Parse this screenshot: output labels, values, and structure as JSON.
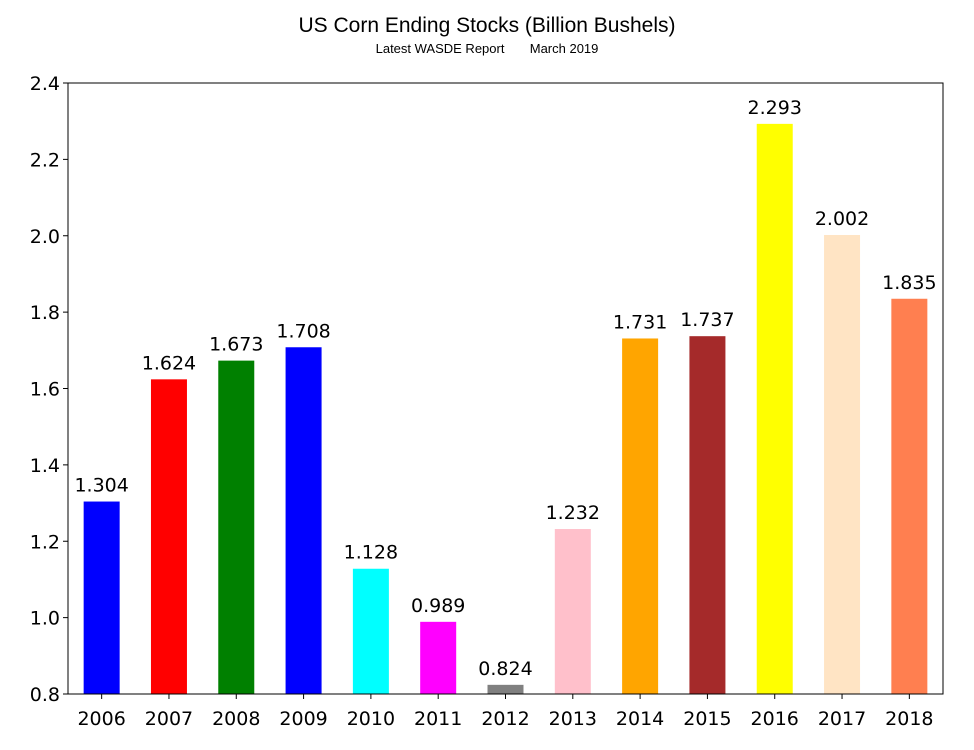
{
  "chart_data": {
    "type": "bar",
    "title": "US Corn Ending Stocks (Billion Bushels)",
    "subtitle": "Latest WASDE Report       March 2019",
    "xlabel": "",
    "ylabel": "",
    "categories": [
      "2006",
      "2007",
      "2008",
      "2009",
      "2010",
      "2011",
      "2012",
      "2013",
      "2014",
      "2015",
      "2016",
      "2017",
      "2018"
    ],
    "values": [
      1.304,
      1.624,
      1.673,
      1.708,
      1.128,
      0.989,
      0.824,
      1.232,
      1.731,
      1.737,
      2.293,
      2.002,
      1.835
    ],
    "value_labels": [
      "1.304",
      "1.624",
      "1.673",
      "1.708",
      "1.128",
      "0.989",
      "0.824",
      "1.232",
      "1.731",
      "1.737",
      "2.293",
      "2.002",
      "1.835"
    ],
    "colors": [
      "#0000ff",
      "#ff0000",
      "#008000",
      "#0000ff",
      "#00ffff",
      "#ff00ff",
      "#808080",
      "#ffc0cb",
      "#ffa500",
      "#a52a2a",
      "#ffff00",
      "#ffe4c4",
      "#ff7f50"
    ],
    "ylim": [
      0.8,
      2.4
    ],
    "yticks": [
      0.8,
      1.0,
      1.2,
      1.4,
      1.6,
      1.8,
      2.0,
      2.2,
      2.4
    ],
    "ytick_labels": [
      "0.8",
      "1.0",
      "1.2",
      "1.4",
      "1.6",
      "1.8",
      "2.0",
      "2.2",
      "2.4"
    ],
    "grid": false,
    "legend": "none"
  }
}
